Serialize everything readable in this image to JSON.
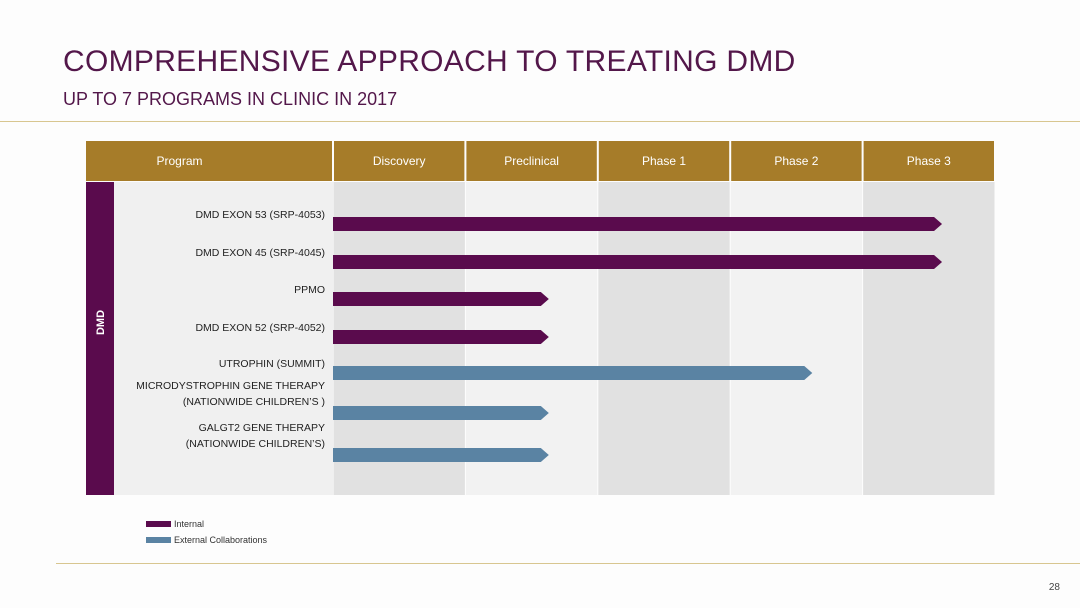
{
  "slide": {
    "title": "COMPREHENSIVE APPROACH TO TREATING DMD",
    "subtitle": "UP TO 7 PROGRAMS IN CLINIC IN 2017",
    "page_number": "28"
  },
  "colors": {
    "header": "#a67c29",
    "internal": "#5a0b4d",
    "external": "#5a83a3",
    "group": "#5a0b4d"
  },
  "chart_data": {
    "type": "gantt",
    "program_header": "Program",
    "phases": [
      "Discovery",
      "Preclinical",
      "Phase 1",
      "Phase 2",
      "Phase 3"
    ],
    "group_label": "DMD",
    "rows": [
      {
        "label_lines": [
          "DMD EXON 53 (SRP-4053)"
        ],
        "end_phase": 4.6,
        "type": "internal"
      },
      {
        "label_lines": [
          "DMD EXON 45 (SRP-4045)"
        ],
        "end_phase": 4.6,
        "type": "internal"
      },
      {
        "label_lines": [
          "PPMO"
        ],
        "end_phase": 1.63,
        "type": "internal"
      },
      {
        "label_lines": [
          "DMD EXON 52 (SRP-4052)"
        ],
        "end_phase": 1.63,
        "type": "internal"
      },
      {
        "label_lines": [
          "UTROPHIN (SUMMIT)"
        ],
        "end_phase": 3.62,
        "type": "external"
      },
      {
        "label_lines": [
          "MICRODYSTROPHIN GENE THERAPY",
          "(NATIONWIDE CHILDREN’S )"
        ],
        "end_phase": 1.63,
        "type": "external"
      },
      {
        "label_lines": [
          "GALGT2 GENE THERAPY",
          "(NATIONWIDE CHILDREN’S)"
        ],
        "end_phase": 1.63,
        "type": "external"
      }
    ],
    "legend": [
      {
        "label": "Internal",
        "type": "internal"
      },
      {
        "label": "External Collaborations",
        "type": "external"
      }
    ]
  }
}
